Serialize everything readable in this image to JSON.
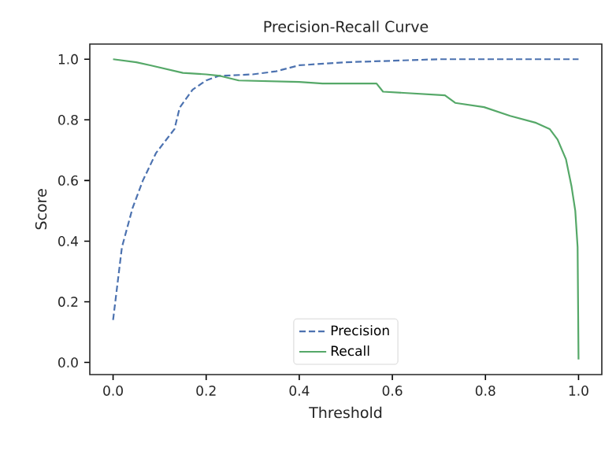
{
  "chart_data": {
    "type": "line",
    "title": "Precision-Recall Curve",
    "xlabel": "Threshold",
    "ylabel": "Score",
    "xlim": [
      -0.05,
      1.05
    ],
    "ylim": [
      -0.04,
      1.05
    ],
    "xticks": [
      {
        "value": 0,
        "label": "0.0"
      },
      0.2,
      0.4,
      0.6,
      0.8,
      {
        "value": 1,
        "label": "1.0"
      }
    ],
    "yticks": [
      {
        "value": 0,
        "label": "0.0"
      },
      0.2,
      0.4,
      0.6,
      0.8,
      {
        "value": 1,
        "label": "1.0"
      }
    ],
    "grid": false,
    "legend": "bottom",
    "series": [
      {
        "name": "Precision",
        "color": "#4c72b0",
        "line_style": "dashed",
        "x": [
          0,
          0.019,
          0.042,
          0.064,
          0.092,
          0.132,
          0.143,
          0.171,
          0.2,
          0.227,
          0.3,
          0.35,
          0.4,
          0.5,
          0.6,
          0.7,
          0.8,
          0.9,
          1.0
        ],
        "values": [
          0.14,
          0.38,
          0.51,
          0.6,
          0.69,
          0.77,
          0.84,
          0.9,
          0.93,
          0.945,
          0.95,
          0.96,
          0.98,
          0.99,
          0.995,
          1.0,
          1.0,
          1.0,
          1.0
        ]
      },
      {
        "name": "Recall",
        "color": "#55a868",
        "line_style": "solid",
        "x": [
          0,
          0.05,
          0.08,
          0.15,
          0.2,
          0.23,
          0.27,
          0.4,
          0.45,
          0.566,
          0.58,
          0.713,
          0.735,
          0.797,
          0.853,
          0.909,
          0.938,
          0.955,
          0.973,
          0.985,
          0.993,
          0.998,
          1.0
        ],
        "values": [
          1.0,
          0.99,
          0.98,
          0.955,
          0.95,
          0.945,
          0.93,
          0.925,
          0.92,
          0.92,
          0.893,
          0.881,
          0.856,
          0.842,
          0.813,
          0.79,
          0.77,
          0.735,
          0.67,
          0.58,
          0.5,
          0.38,
          0.01
        ]
      }
    ]
  }
}
